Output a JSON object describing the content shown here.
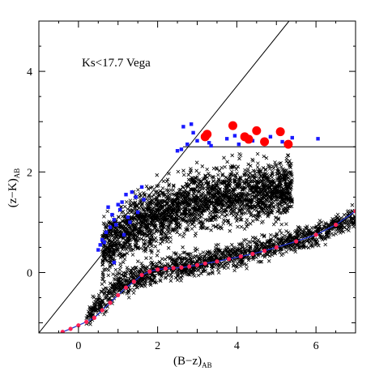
{
  "chart_data": {
    "type": "scatter",
    "annotation": "Ks<17.7 Vega",
    "xlabel": "(B−z)",
    "xlabel_sub": "AB",
    "ylabel": "(z−K)",
    "ylabel_sub": "AB",
    "xlim": [
      -1,
      7
    ],
    "ylim": [
      -1.2,
      5
    ],
    "xticks": [
      0,
      2,
      4,
      6
    ],
    "yticks": [
      0,
      2,
      4
    ],
    "grid": false,
    "legend": "none",
    "colors": {
      "field": "#000000",
      "outside_selection": "#1a1aff",
      "selected": "#ff0000",
      "track_line": "#2233cc",
      "track_points": "#ff2255"
    },
    "selection_boundary": {
      "diagonal": [
        [
          -1,
          -1.2
        ],
        [
          5.32,
          5
        ]
      ],
      "horizontal": [
        [
          2.64,
          2.5
        ],
        [
          7,
          2.5
        ]
      ]
    },
    "series": [
      {
        "marker": "cross",
        "clusters": [
          {
            "type": "band",
            "x_range": [
              0.6,
              5.4
            ],
            "center": [
              [
                0.6,
                0.45
              ],
              [
                1.5,
                0.95
              ],
              [
                2.5,
                1.3
              ],
              [
                3.5,
                1.5
              ],
              [
                4.5,
                1.6
              ],
              [
                5.4,
                1.7
              ]
            ],
            "spread": 0.28,
            "count": 2600
          },
          {
            "type": "band",
            "x_range": [
              0.2,
              7
            ],
            "center": [
              [
                0.2,
                -0.9
              ],
              [
                1.0,
                -0.25
              ],
              [
                2.0,
                0.05
              ],
              [
                3.0,
                0.2
              ],
              [
                4.0,
                0.35
              ],
              [
                5.0,
                0.55
              ],
              [
                6.0,
                0.75
              ],
              [
                7.0,
                1.1
              ]
            ],
            "spread": 0.12,
            "count": 1500
          }
        ]
      },
      {
        "marker": "square",
        "x": [
          2.6,
          2.75,
          2.5,
          2.85,
          2.9,
          3.0,
          2.65,
          1.0,
          1.2,
          0.9,
          1.6,
          1.45,
          0.8,
          1.05,
          1.25,
          0.7,
          1.65,
          1.35,
          0.6,
          0.85,
          1.1,
          0.55,
          1.5,
          0.95,
          0.75,
          1.3,
          0.5,
          1.15,
          0.65,
          0.9,
          4.4,
          3.3,
          3.75,
          4.05,
          4.85,
          5.15,
          5.4,
          6.05,
          3.35,
          3.95,
          4.65
        ],
        "y": [
          2.45,
          2.55,
          2.42,
          2.95,
          2.78,
          2.62,
          2.9,
          1.35,
          1.55,
          1.05,
          1.7,
          1.5,
          0.9,
          1.25,
          1.1,
          0.8,
          1.45,
          1.6,
          0.65,
          1.15,
          1.4,
          0.55,
          1.2,
          0.95,
          1.3,
          1.0,
          0.45,
          0.75,
          0.6,
          0.2,
          2.62,
          2.58,
          2.66,
          2.55,
          2.7,
          2.6,
          2.68,
          2.66,
          2.52,
          2.72,
          2.62
        ]
      },
      {
        "marker": "circle",
        "x": [
          3.2,
          3.25,
          3.9,
          4.2,
          4.3,
          4.5,
          4.7,
          5.1,
          5.3
        ],
        "y": [
          2.7,
          2.75,
          2.92,
          2.7,
          2.65,
          2.82,
          2.6,
          2.8,
          2.55
        ]
      },
      {
        "marker": "line-with-dots",
        "x": [
          -0.4,
          -0.2,
          0.0,
          0.2,
          0.4,
          0.6,
          0.8,
          1.0,
          1.2,
          1.4,
          1.6,
          1.8,
          2.0,
          2.2,
          2.4,
          2.6,
          2.8,
          3.0,
          3.2,
          3.5,
          3.8,
          4.1,
          4.4,
          4.7,
          5.0,
          5.5,
          6.0,
          6.5,
          7.0
        ],
        "y": [
          -1.18,
          -1.12,
          -1.05,
          -0.98,
          -0.9,
          -0.75,
          -0.6,
          -0.45,
          -0.3,
          -0.18,
          -0.05,
          0.02,
          0.06,
          0.08,
          0.09,
          0.1,
          0.12,
          0.15,
          0.18,
          0.22,
          0.27,
          0.32,
          0.37,
          0.43,
          0.5,
          0.62,
          0.75,
          0.95,
          1.22
        ]
      }
    ]
  }
}
